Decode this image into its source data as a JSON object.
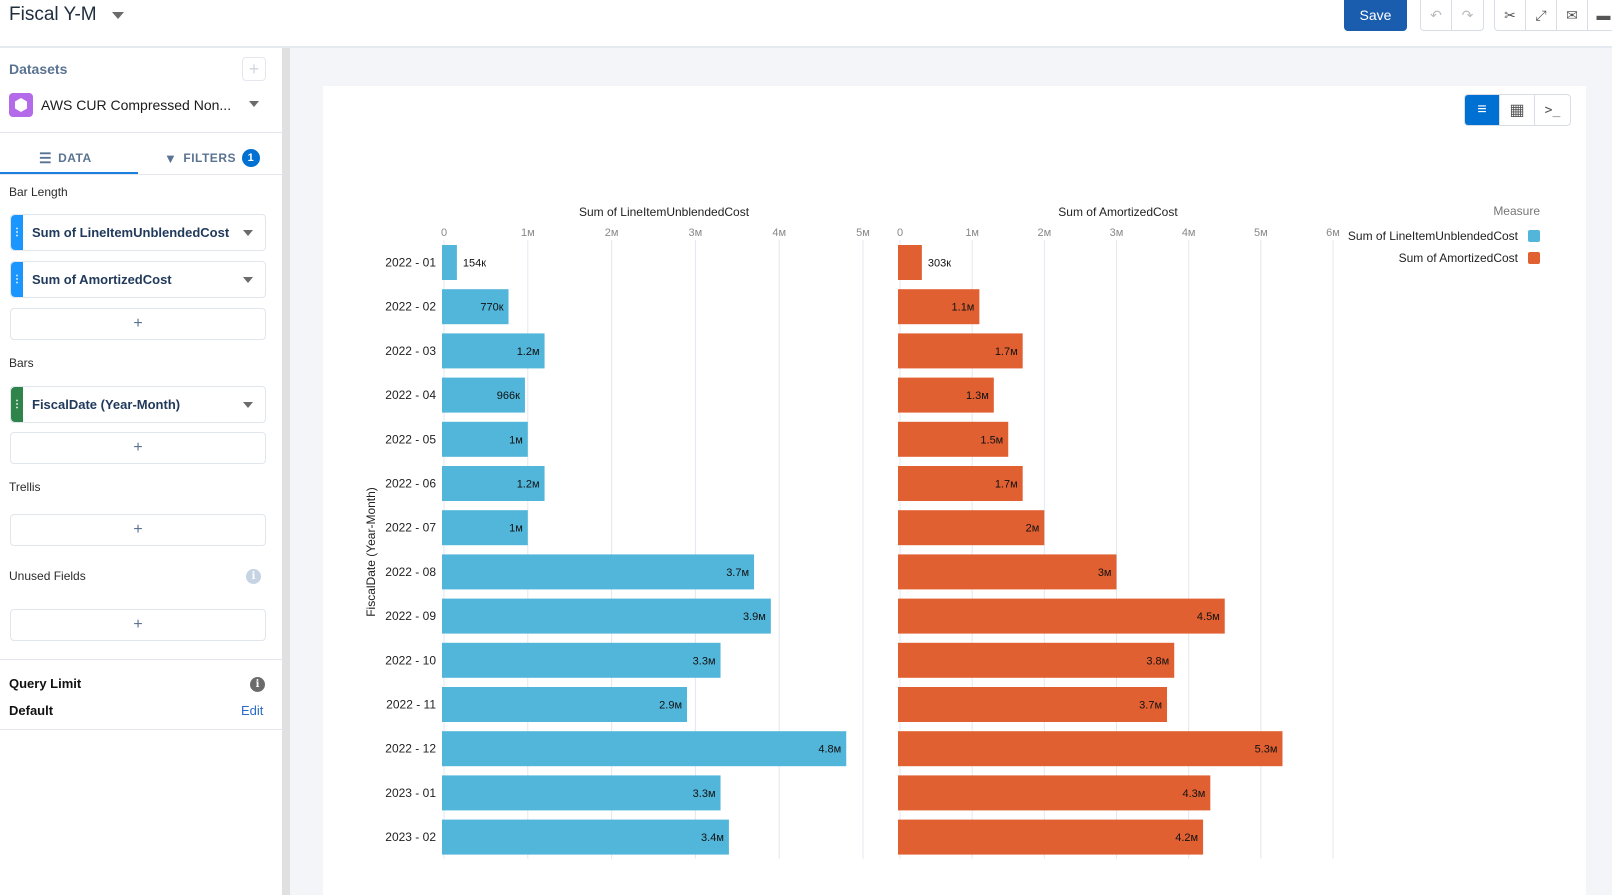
{
  "header": {
    "title": "Fiscal Y-M",
    "save_label": "Save"
  },
  "toolbar": {
    "undo": "undo-icon",
    "redo": "redo-icon",
    "cut": "scissors-icon",
    "expand": "expand-icon",
    "email": "envelope-icon",
    "folder": "folder-icon"
  },
  "sidebar": {
    "datasets_label": "Datasets",
    "dataset_name": "AWS CUR Compressed Non...",
    "tabs": [
      {
        "label": "DATA"
      },
      {
        "label": "FILTERS",
        "badge": "1"
      }
    ],
    "bar_length_label": "Bar Length",
    "bar_length_fields": [
      "Sum of LineItemUnblendedCost",
      "Sum of AmortizedCost"
    ],
    "bars_label": "Bars",
    "bars_fields": [
      "FiscalDate (Year-Month)"
    ],
    "trellis_label": "Trellis",
    "unused_label": "Unused Fields",
    "add_symbol": "+",
    "query_limit_label": "Query Limit",
    "query_limit_value": "Default",
    "edit_label": "Edit"
  },
  "colors": {
    "accent": "#0070d2",
    "series1": "#52b6da",
    "series2": "#e16032",
    "save": "#1a5cad"
  },
  "chart_data": {
    "type": "bar",
    "orientation": "horizontal",
    "ylabel": "FiscalDate (Year-Month)",
    "categories": [
      "2022 - 01",
      "2022 - 02",
      "2022 - 03",
      "2022 - 04",
      "2022 - 05",
      "2022 - 06",
      "2022 - 07",
      "2022 - 08",
      "2022 - 09",
      "2022 - 10",
      "2022 - 11",
      "2022 - 12",
      "2023 - 01",
      "2023 - 02"
    ],
    "legend": {
      "title": "Measure",
      "position": "top-right"
    },
    "grid": true,
    "series": [
      {
        "name": "Sum of LineItemUnblendedCost",
        "color": "#52b6da",
        "xlim": [
          0,
          5000000
        ],
        "ticks": [
          "0",
          "1м",
          "2м",
          "3м",
          "4м",
          "5м"
        ],
        "values": [
          154000,
          770000,
          1200000,
          966000,
          1000000,
          1200000,
          1000000,
          3700000,
          3900000,
          3300000,
          2900000,
          4800000,
          3300000,
          3400000
        ],
        "labels": [
          "154к",
          "770к",
          "1.2м",
          "966к",
          "1м",
          "1.2м",
          "1м",
          "3.7м",
          "3.9м",
          "3.3м",
          "2.9м",
          "4.8м",
          "3.3м",
          "3.4м"
        ]
      },
      {
        "name": "Sum of AmortizedCost",
        "color": "#e16032",
        "xlim": [
          0,
          6000000
        ],
        "ticks": [
          "0",
          "1м",
          "2м",
          "3м",
          "4м",
          "5м",
          "6м"
        ],
        "values": [
          303000,
          1100000,
          1700000,
          1300000,
          1500000,
          1700000,
          2000000,
          3000000,
          4500000,
          3800000,
          3700000,
          5300000,
          4300000,
          4200000
        ],
        "labels": [
          "303к",
          "1.1м",
          "1.7м",
          "1.3м",
          "1.5м",
          "1.7м",
          "2м",
          "3м",
          "4.5м",
          "3.8м",
          "3.7м",
          "5.3м",
          "4.3м",
          "4.2м"
        ]
      }
    ]
  }
}
